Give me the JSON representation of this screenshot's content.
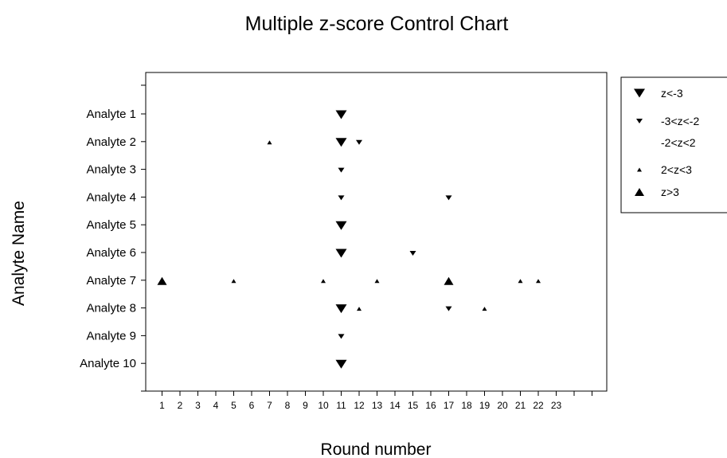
{
  "chart_data": {
    "type": "scatter",
    "title": "Multiple z-score Control Chart",
    "xlabel": "Round number",
    "ylabel": "Analyte Name",
    "x_ticks": [
      "1",
      "2",
      "3",
      "4",
      "5",
      "6",
      "7",
      "8",
      "9",
      "10",
      "11",
      "12",
      "13",
      "14",
      "15",
      "16",
      "17",
      "18",
      "19",
      "20",
      "21",
      "22",
      "23"
    ],
    "xlim": [
      0,
      25
    ],
    "categories": [
      "Analyte 1",
      "Analyte 2",
      "Analyte 3",
      "Analyte 4",
      "Analyte 5",
      "Analyte 6",
      "Analyte 7",
      "Analyte 8",
      "Analyte 9",
      "Analyte 10"
    ],
    "grid": false,
    "legend_position": "top-right",
    "series": [
      {
        "name": "z<-3",
        "marker": "triangle-down-large",
        "points": [
          {
            "x": 11,
            "y": "Analyte 1"
          },
          {
            "x": 11,
            "y": "Analyte 2"
          },
          {
            "x": 11,
            "y": "Analyte 5"
          },
          {
            "x": 11,
            "y": "Analyte 6"
          },
          {
            "x": 11,
            "y": "Analyte 8"
          },
          {
            "x": 11,
            "y": "Analyte 10"
          }
        ]
      },
      {
        "name": "-3<z<-2",
        "marker": "triangle-down-small",
        "points": [
          {
            "x": 12,
            "y": "Analyte 2"
          },
          {
            "x": 11,
            "y": "Analyte 3"
          },
          {
            "x": 11,
            "y": "Analyte 4"
          },
          {
            "x": 17,
            "y": "Analyte 4"
          },
          {
            "x": 15,
            "y": "Analyte 6"
          },
          {
            "x": 17,
            "y": "Analyte 8"
          },
          {
            "x": 11,
            "y": "Analyte 9"
          }
        ]
      },
      {
        "name": "-2<z<2",
        "marker": "none",
        "points": []
      },
      {
        "name": "2<z<3",
        "marker": "triangle-up-small",
        "points": [
          {
            "x": 7,
            "y": "Analyte 2"
          },
          {
            "x": 5,
            "y": "Analyte 7"
          },
          {
            "x": 10,
            "y": "Analyte 7"
          },
          {
            "x": 13,
            "y": "Analyte 7"
          },
          {
            "x": 21,
            "y": "Analyte 7"
          },
          {
            "x": 22,
            "y": "Analyte 7"
          },
          {
            "x": 12,
            "y": "Analyte 8"
          },
          {
            "x": 19,
            "y": "Analyte 8"
          }
        ]
      },
      {
        "name": "z>3",
        "marker": "triangle-up-large",
        "points": [
          {
            "x": 1,
            "y": "Analyte 7"
          },
          {
            "x": 17,
            "y": "Analyte 7"
          }
        ]
      }
    ]
  }
}
